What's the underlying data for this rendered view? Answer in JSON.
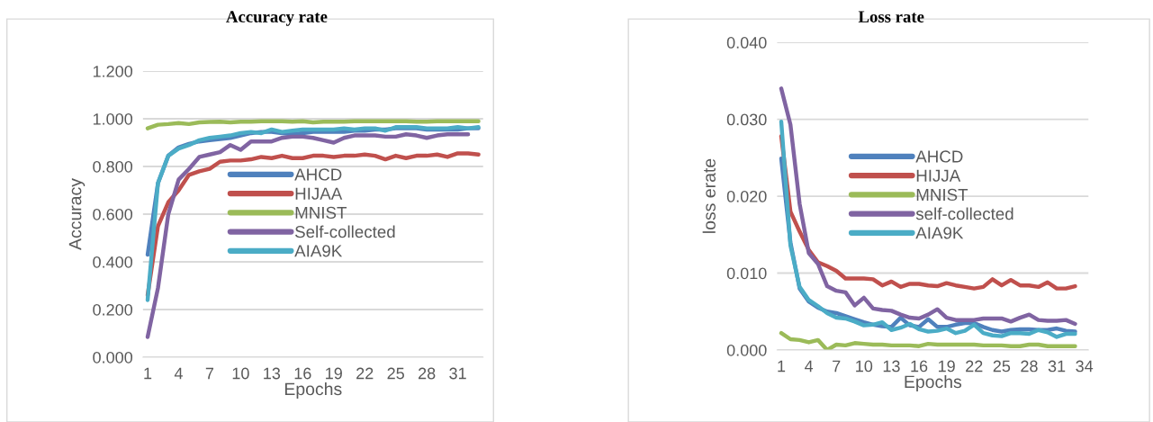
{
  "chart_data": [
    {
      "type": "line",
      "title": "Accuracy rate",
      "xlabel": "Epochs",
      "ylabel": "Accuracy",
      "categories": [
        "1",
        null,
        null,
        "4",
        null,
        null,
        "7",
        null,
        null,
        "10",
        null,
        null,
        "13",
        null,
        null,
        "16",
        null,
        null,
        "19",
        null,
        null,
        "22",
        null,
        null,
        "25",
        null,
        null,
        "28",
        null,
        null,
        "31",
        null,
        null
      ],
      "ylim": [
        0,
        1.2
      ],
      "yticks": [
        {
          "value": 0,
          "label": "0.000"
        },
        {
          "value": 0.2,
          "label": "0.200"
        },
        {
          "value": 0.4,
          "label": "0.400"
        },
        {
          "value": 0.6,
          "label": "0.600"
        },
        {
          "value": 0.8,
          "label": "0.800"
        },
        {
          "value": 1.0,
          "label": "1.000"
        },
        {
          "value": 1.2,
          "label": "1.200"
        }
      ],
      "grid": "y",
      "legend": "center",
      "marker": "none",
      "line_style": "solid",
      "series": [
        {
          "name": "AHCD",
          "color": "#4f81bd",
          "values": [
            0.43,
            0.73,
            0.845,
            0.88,
            0.895,
            0.905,
            0.91,
            0.915,
            0.92,
            0.93,
            0.94,
            0.945,
            0.945,
            0.94,
            0.935,
            0.94,
            0.945,
            0.945,
            0.945,
            0.945,
            0.95,
            0.95,
            0.955,
            0.955,
            0.96,
            0.96,
            0.96,
            0.955,
            0.955,
            0.955,
            0.955,
            0.96,
            0.96
          ]
        },
        {
          "name": "HIJAA",
          "color": "#c0504d",
          "values": [
            0.26,
            0.55,
            0.65,
            0.7,
            0.765,
            0.78,
            0.79,
            0.82,
            0.825,
            0.825,
            0.83,
            0.84,
            0.835,
            0.845,
            0.835,
            0.835,
            0.845,
            0.845,
            0.84,
            0.845,
            0.845,
            0.85,
            0.845,
            0.83,
            0.845,
            0.835,
            0.845,
            0.845,
            0.85,
            0.84,
            0.855,
            0.855,
            0.85
          ]
        },
        {
          "name": "MNIST",
          "color": "#9bbb59",
          "values": [
            0.96,
            0.975,
            0.978,
            0.982,
            0.978,
            0.985,
            0.987,
            0.988,
            0.985,
            0.988,
            0.988,
            0.99,
            0.99,
            0.99,
            0.988,
            0.99,
            0.985,
            0.988,
            0.988,
            0.988,
            0.99,
            0.99,
            0.99,
            0.99,
            0.99,
            0.99,
            0.988,
            0.988,
            0.99,
            0.99,
            0.99,
            0.99,
            0.99
          ]
        },
        {
          "name": "Self-collected",
          "color": "#8064a2",
          "values": [
            0.085,
            0.29,
            0.6,
            0.745,
            0.79,
            0.84,
            0.85,
            0.86,
            0.89,
            0.87,
            0.905,
            0.905,
            0.905,
            0.92,
            0.925,
            0.925,
            0.92,
            0.91,
            0.9,
            0.92,
            0.93,
            0.93,
            0.93,
            0.925,
            0.925,
            0.935,
            0.93,
            0.92,
            0.93,
            0.935,
            0.935,
            0.935,
            null
          ]
        },
        {
          "name": "AIA9K",
          "color": "#4bacc6",
          "values": [
            0.24,
            0.73,
            0.845,
            0.875,
            0.89,
            0.91,
            0.92,
            0.925,
            0.93,
            0.94,
            0.945,
            0.94,
            0.955,
            0.945,
            0.95,
            0.955,
            0.955,
            0.955,
            0.955,
            0.96,
            0.955,
            0.96,
            0.96,
            0.95,
            0.965,
            0.965,
            0.965,
            0.96,
            0.96,
            0.96,
            0.965,
            0.96,
            0.965
          ]
        }
      ]
    },
    {
      "type": "line",
      "title": "Loss rate",
      "xlabel": "Epochs",
      "ylabel": "loss erate",
      "categories": [
        "1",
        null,
        null,
        "4",
        null,
        null,
        "7",
        null,
        null,
        "10",
        null,
        null,
        "13",
        null,
        null,
        "16",
        null,
        null,
        "19",
        null,
        null,
        "22",
        null,
        null,
        "25",
        null,
        null,
        "28",
        null,
        null,
        "31",
        null,
        null,
        "34"
      ],
      "ylim": [
        0,
        0.04
      ],
      "yticks": [
        {
          "value": 0,
          "label": "0.000"
        },
        {
          "value": 0.01,
          "label": "0.010"
        },
        {
          "value": 0.02,
          "label": "0.020"
        },
        {
          "value": 0.03,
          "label": "0.030"
        },
        {
          "value": 0.04,
          "label": "0.040"
        }
      ],
      "grid": "y",
      "legend": "center",
      "marker": "none",
      "line_style": "solid",
      "series": [
        {
          "name": "AHCD",
          "color": "#4f81bd",
          "values": [
            0.0249,
            0.014,
            0.008,
            0.0063,
            0.0055,
            0.005,
            0.0048,
            0.0044,
            0.004,
            0.0036,
            0.0033,
            0.0031,
            0.003,
            0.0042,
            0.0032,
            0.003,
            0.004,
            0.003,
            0.003,
            0.0033,
            0.0035,
            0.0035,
            0.003,
            0.0026,
            0.0024,
            0.0026,
            0.0027,
            0.0027,
            0.0026,
            0.0026,
            0.0028,
            0.0025,
            0.0024,
            null
          ]
        },
        {
          "name": "HIJJA",
          "color": "#c0504d",
          "values": [
            0.0278,
            0.018,
            0.0154,
            0.013,
            0.0114,
            0.0109,
            0.0103,
            0.0093,
            0.0093,
            0.0093,
            0.0092,
            0.0084,
            0.0089,
            0.0082,
            0.0086,
            0.0086,
            0.0084,
            0.0083,
            0.0087,
            0.0084,
            0.0082,
            0.008,
            0.0082,
            0.0092,
            0.0084,
            0.0091,
            0.0084,
            0.0084,
            0.0082,
            0.0088,
            0.008,
            0.008,
            0.0083,
            null
          ]
        },
        {
          "name": "MNIST",
          "color": "#9bbb59",
          "values": [
            0.0022,
            0.0014,
            0.0013,
            0.001,
            0.0013,
            0.0,
            0.0007,
            0.0006,
            0.0009,
            0.0008,
            0.0007,
            0.0007,
            0.0006,
            0.0006,
            0.0006,
            0.0005,
            0.0008,
            0.0007,
            0.0007,
            0.0007,
            0.0007,
            0.0007,
            0.0006,
            0.0006,
            0.0006,
            0.0005,
            0.0005,
            0.0007,
            0.0007,
            0.0005,
            0.0005,
            0.0005,
            0.0005,
            null
          ]
        },
        {
          "name": "self-collected",
          "color": "#8064a2",
          "values": [
            0.034,
            0.0293,
            0.019,
            0.0126,
            0.0112,
            0.0083,
            0.0077,
            0.0075,
            0.0058,
            0.0068,
            0.0054,
            0.0052,
            0.0051,
            0.0046,
            0.0042,
            0.0041,
            0.0046,
            0.0053,
            0.0042,
            0.0039,
            0.0039,
            0.0039,
            0.0041,
            0.0041,
            0.0041,
            0.0037,
            0.0042,
            0.0046,
            0.0039,
            0.0038,
            0.0038,
            0.0039,
            0.0034,
            null
          ]
        },
        {
          "name": "AIA9K",
          "color": "#4bacc6",
          "values": [
            0.0297,
            0.0136,
            0.0082,
            0.0065,
            0.0057,
            0.0048,
            0.0042,
            0.0041,
            0.0037,
            0.0032,
            0.0033,
            0.0036,
            0.0026,
            0.0029,
            0.0034,
            0.0027,
            0.0024,
            0.0025,
            0.0028,
            0.0022,
            0.0025,
            0.0033,
            0.0022,
            0.0019,
            0.0018,
            0.0022,
            0.0022,
            0.0021,
            0.0026,
            0.0023,
            0.0017,
            0.0021,
            0.0021,
            null
          ]
        }
      ]
    }
  ]
}
